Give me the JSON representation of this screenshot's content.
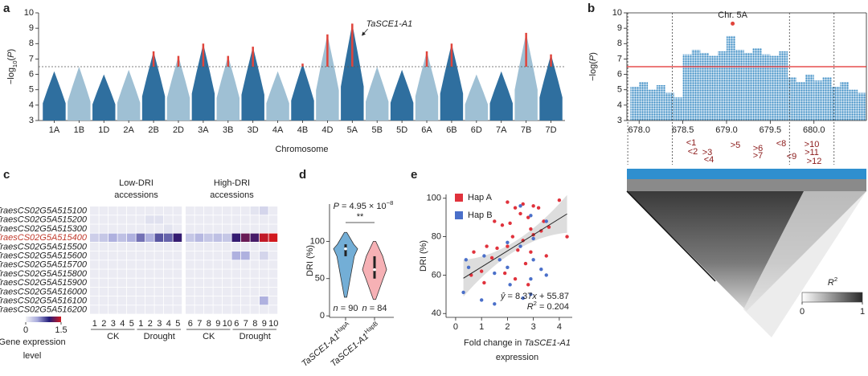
{
  "chart_data": [
    {
      "panel": "a",
      "type": "manhattan",
      "categories": [
        "1A",
        "1B",
        "1D",
        "2A",
        "2B",
        "2D",
        "3A",
        "3B",
        "3D",
        "4A",
        "4B",
        "4D",
        "5A",
        "5B",
        "5D",
        "6A",
        "6B",
        "6D",
        "7A",
        "7B",
        "7D"
      ],
      "values": [
        6.2,
        6.5,
        6.0,
        6.3,
        7.5,
        7.2,
        8.0,
        7.2,
        7.8,
        6.2,
        6.7,
        8.6,
        9.3,
        6.5,
        6.3,
        7.5,
        8.0,
        6.0,
        6.2,
        8.7,
        7.3
      ],
      "colors": [
        "#2f6f9f",
        "#9fc0d4"
      ],
      "highlight_color": "#e0443b",
      "threshold": 6.5,
      "ylim": [
        3,
        10
      ],
      "yticks": [
        3,
        4,
        5,
        6,
        7,
        8,
        9,
        10
      ],
      "ylabel": [
        "−log",
        "10",
        "(",
        "P",
        ")"
      ],
      "xlabel": "Chromosome",
      "annotation": "TaSCE1-A1"
    },
    {
      "panel": "b",
      "type": "regional",
      "title": "Chr. 5A",
      "x": [
        677.9,
        678.0,
        678.1,
        678.2,
        678.3,
        678.4,
        678.5,
        678.6,
        678.7,
        678.8,
        678.9,
        679.0,
        679.1,
        679.2,
        679.3,
        679.4,
        679.5,
        679.6,
        679.7,
        679.8,
        679.9,
        680.0,
        680.1,
        680.2,
        680.3,
        680.4,
        680.5
      ],
      "values": [
        5.2,
        5.5,
        5.0,
        5.3,
        4.8,
        4.5,
        7.3,
        7.6,
        7.4,
        7.2,
        7.5,
        8.5,
        7.6,
        7.4,
        7.7,
        7.3,
        7.2,
        7.5,
        5.8,
        5.5,
        6.0,
        5.6,
        5.8,
        5.2,
        5.5,
        5.0,
        4.8
      ],
      "color": "#3a8cc4",
      "lead": {
        "x": 679.07,
        "y": 9.3
      },
      "lead_color": "#e0443b",
      "threshold": 6.5,
      "threshold_color": "#e02b2b",
      "region_bounds": [
        677.87,
        678.38,
        679.72,
        680.23
      ],
      "xlim": [
        677.86,
        680.6
      ],
      "xticks": [
        {
          "value": 678,
          "label": "678.0"
        },
        678.5,
        {
          "value": 679,
          "label": "679.0"
        },
        679.5,
        {
          "value": 680,
          "label": "680.0"
        }
      ],
      "ylim": [
        3,
        10
      ],
      "yticks": [
        3,
        4,
        5,
        6,
        7,
        8,
        9,
        10
      ],
      "ylabel": [
        "−log(",
        "P",
        ")"
      ],
      "genes": [
        "<1",
        "<2",
        ">3",
        "<4",
        ">5",
        ">6",
        ">7",
        "<8",
        "<9",
        ">10",
        ">11",
        ">12"
      ],
      "colorbar": {
        "title": [
          "R",
          "2"
        ],
        "ticks": [
          0,
          1
        ]
      }
    },
    {
      "panel": "c",
      "type": "heatmap",
      "rows": [
        "TraesCS02G5A515100",
        "TraesCS02G5A515200",
        "TraesCS02G5A515300",
        "TraesCS02G5A515400",
        "TraesCS02G5A515500",
        "TraesCS02G5A515600",
        "TraesCS02G5A515700",
        "TraesCS02G5A515800",
        "TraesCS02G5A515900",
        "TraesCS02G5A516000",
        "TraesCS02G5A516100",
        "TraesCS02G5A516200"
      ],
      "highlight_row": 3,
      "highlight_color": "#c0392b",
      "columns": [
        1,
        2,
        3,
        4,
        5,
        1,
        2,
        3,
        4,
        5,
        6,
        7,
        8,
        9,
        10,
        6,
        7,
        8,
        9,
        10
      ],
      "groups": [
        "CK",
        "Drought",
        "CK",
        "Drought"
      ],
      "group_titles": [
        [
          "Low-DRI",
          "accessions"
        ],
        [
          "High-DRI",
          "accessions"
        ]
      ],
      "values": [
        [
          0.05,
          0.05,
          0.05,
          0.05,
          0.05,
          0.05,
          0.05,
          0.05,
          0.05,
          0.05,
          0.05,
          0.05,
          0.05,
          0.05,
          0.05,
          0.05,
          0.05,
          0.1,
          0.2,
          0.05
        ],
        [
          0.05,
          0.05,
          0.05,
          0.05,
          0.05,
          0.05,
          0.12,
          0.12,
          0.05,
          0.05,
          0.05,
          0.05,
          0.05,
          0.05,
          0.05,
          0.05,
          0.05,
          0.05,
          0.05,
          0.05
        ],
        [
          0.05,
          0.05,
          0.05,
          0.05,
          0.05,
          0.05,
          0.05,
          0.05,
          0.1,
          0.05,
          0.05,
          0.05,
          0.05,
          0.05,
          0.05,
          0.05,
          0.05,
          0.05,
          0.05,
          0.05
        ],
        [
          0.25,
          0.3,
          0.45,
          0.35,
          0.45,
          0.7,
          0.45,
          0.8,
          0.75,
          1.05,
          0.3,
          0.4,
          0.3,
          0.35,
          0.3,
          1.05,
          1.2,
          1.1,
          1.45,
          1.5
        ],
        [
          0.05,
          0.05,
          0.05,
          0.05,
          0.05,
          0.05,
          0.05,
          0.05,
          0.05,
          0.05,
          0.05,
          0.05,
          0.05,
          0.05,
          0.05,
          0.05,
          0.05,
          0.05,
          0.05,
          0.05
        ],
        [
          0.05,
          0.05,
          0.05,
          0.05,
          0.05,
          0.05,
          0.05,
          0.05,
          0.05,
          0.05,
          0.05,
          0.05,
          0.05,
          0.05,
          0.05,
          0.45,
          0.45,
          0.05,
          0.2,
          0.05
        ],
        [
          0.05,
          0.05,
          0.05,
          0.05,
          0.05,
          0.05,
          0.05,
          0.05,
          0.05,
          0.05,
          0.05,
          0.05,
          0.05,
          0.05,
          0.05,
          0.05,
          0.05,
          0.05,
          0.05,
          0.05
        ],
        [
          0.05,
          0.05,
          0.05,
          0.05,
          0.05,
          0.05,
          0.05,
          0.05,
          0.05,
          0.05,
          0.05,
          0.05,
          0.05,
          0.05,
          0.05,
          0.05,
          0.05,
          0.05,
          0.05,
          0.05
        ],
        [
          0.05,
          0.05,
          0.05,
          0.05,
          0.05,
          0.05,
          0.05,
          0.05,
          0.05,
          0.05,
          0.05,
          0.05,
          0.05,
          0.05,
          0.05,
          0.05,
          0.05,
          0.05,
          0.05,
          0.05
        ],
        [
          0.05,
          0.05,
          0.05,
          0.05,
          0.05,
          0.05,
          0.05,
          0.05,
          0.05,
          0.05,
          0.05,
          0.05,
          0.05,
          0.05,
          0.05,
          0.05,
          0.05,
          0.05,
          0.05,
          0.05
        ],
        [
          0.05,
          0.05,
          0.05,
          0.05,
          0.05,
          0.05,
          0.05,
          0.05,
          0.05,
          0.05,
          0.05,
          0.05,
          0.05,
          0.05,
          0.05,
          0.05,
          0.05,
          0.05,
          0.45,
          0.05
        ],
        [
          0.05,
          0.05,
          0.05,
          0.05,
          0.05,
          0.05,
          0.05,
          0.05,
          0.05,
          0.05,
          0.05,
          0.05,
          0.05,
          0.05,
          0.05,
          0.05,
          0.05,
          0.05,
          0.05,
          0.05
        ]
      ],
      "zlim": [
        0,
        1.5
      ],
      "colorscale": [
        [
          0,
          "#f2f2f5"
        ],
        [
          0.5,
          "#a7aadc"
        ],
        [
          1,
          "#241c7a"
        ],
        [
          1.5,
          "#d1191f"
        ]
      ],
      "colorbar": {
        "ticks": [
          0,
          1.5
        ],
        "title": [
          "Gene expression",
          "level"
        ]
      }
    },
    {
      "panel": "d",
      "type": "violin",
      "groups": [
        {
          "label": [
            "TaSCE1-A1",
            "HapA"
          ],
          "color": "#5aa0cf",
          "min": 25,
          "q1": 80,
          "median": 90,
          "q3": 96,
          "max": 112,
          "n_label": [
            "n",
            " = 90"
          ]
        },
        {
          "label": [
            "TaSCE1-A1",
            "HapB"
          ],
          "color": "#f4a3a8",
          "min": 22,
          "q1": 50,
          "median": 62,
          "q3": 80,
          "max": 100,
          "n_label": [
            "n",
            " = 84"
          ]
        }
      ],
      "pvalue": [
        "P",
        " = 4.95 × 10",
        "−8"
      ],
      "significance": "**",
      "ylabel": "DRI (%)",
      "ylim": [
        -2,
        150
      ],
      "yticks": [
        0,
        50,
        100
      ]
    },
    {
      "panel": "e",
      "type": "scatter",
      "series": [
        {
          "name": "Hap A",
          "color": "#e0323c",
          "x": [
            2.0,
            2.3,
            2.6,
            3.0,
            3.2,
            4.0,
            2.5,
            2.1,
            2.8,
            3.4,
            3.6,
            2.9,
            1.5,
            1.8,
            2.2,
            2.6,
            3.0,
            3.3,
            4.3,
            1.2,
            1.6,
            2.0,
            2.4,
            2.9,
            3.5,
            0.7,
            1.4,
            2.7,
            0.6,
            1.0,
            1.9,
            2.3,
            1.1,
            2.8
          ],
          "values": [
            98,
            95,
            97,
            96,
            95,
            99,
            92,
            87,
            90,
            88,
            85,
            84,
            88,
            86,
            80,
            78,
            81,
            83,
            80,
            75,
            74,
            75,
            73,
            72,
            70,
            72,
            69,
            66,
            60,
            62,
            61,
            58,
            56,
            55
          ]
        },
        {
          "name": "Hap B",
          "color": "#4a6fc9",
          "x": [
            2.5,
            3.5,
            2.9,
            3.0,
            2.0,
            2.5,
            1.1,
            1.7,
            2.0,
            3.0,
            3.3,
            0.5,
            0.4,
            1.5,
            2.1,
            2.9,
            2.9,
            1.0,
            1.5,
            0.3,
            2.6,
            3.5
          ],
          "values": [
            96,
            88,
            91,
            79,
            77,
            75,
            70,
            68,
            64,
            68,
            63,
            64,
            68,
            61,
            55,
            58,
            50,
            47,
            45,
            51,
            48,
            60
          ]
        }
      ],
      "fit": {
        "slope": 8.37,
        "intercept": 55.87
      },
      "fit_label": [
        "ŷ",
        " = 8.37",
        "x",
        " + 55.87"
      ],
      "r2_label": [
        "R",
        "2",
        " = 0.204"
      ],
      "xlim": [
        -0.37,
        4.5
      ],
      "xticks": [
        0,
        1,
        2,
        3,
        4
      ],
      "ylim": [
        38,
        102
      ],
      "yticks": [
        40,
        60,
        80,
        100
      ],
      "ylabel": "DRI (%)",
      "xlabel": [
        [
          "Fold change in ",
          "TaSCE1-A1"
        ],
        [
          "expression"
        ]
      ]
    }
  ]
}
